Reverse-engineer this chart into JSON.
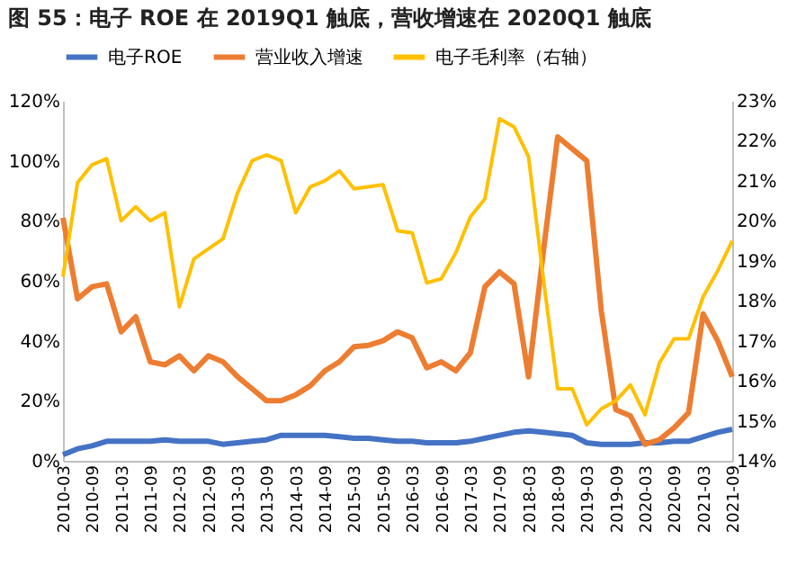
{
  "chart_data": {
    "type": "line",
    "title": "图 55：电子 ROE 在 2019Q1 触底，营收增速在 2020Q1 触底",
    "categories": [
      "2010-03",
      null,
      "2010-09",
      null,
      "2011-03",
      null,
      "2011-09",
      null,
      "2012-03",
      null,
      "2012-09",
      null,
      "2013-03",
      null,
      "2013-09",
      null,
      "2014-03",
      null,
      "2014-09",
      null,
      "2015-03",
      null,
      "2015-09",
      null,
      "2016-03",
      null,
      "2016-09",
      null,
      "2017-03",
      null,
      "2017-09",
      null,
      "2018-03",
      null,
      "2018-09",
      null,
      "2019-03",
      null,
      "2019-09",
      null,
      "2020-03",
      null,
      "2020-09",
      null,
      "2021-03",
      null,
      "2021-09"
    ],
    "series": [
      {
        "name": "电子ROE",
        "color": "#4472c4",
        "values": [
          2,
          4,
          5,
          6.5,
          6.5,
          6.5,
          6.5,
          7,
          6.5,
          6.5,
          6.5,
          5.5,
          6,
          6.5,
          7,
          8.5,
          8.5,
          8.5,
          8.5,
          8,
          7.5,
          7.5,
          7,
          6.5,
          6.5,
          6,
          6,
          6,
          6.5,
          7.5,
          8.5,
          9.5,
          10,
          9.5,
          9,
          8.5,
          6,
          5.5,
          5.5,
          5.5,
          6,
          6,
          6.5,
          6.5,
          8,
          9.5,
          10.5
        ]
      },
      {
        "name": "营业收入增速",
        "color": "#ed7d31",
        "values": [
          81,
          54,
          58,
          59,
          43,
          48,
          33,
          32,
          35,
          30,
          35,
          33,
          28,
          24,
          20,
          20,
          22,
          25,
          30,
          33,
          38,
          38.5,
          40,
          43,
          41,
          31,
          33,
          30,
          36,
          58,
          63,
          59,
          28,
          69,
          108,
          104,
          100,
          50,
          17,
          15,
          5.5,
          7,
          11,
          16,
          49,
          40,
          28
        ]
      },
      {
        "name": "电子毛利率（右轴）",
        "color": "#ffc000",
        "axis": "y2",
        "values": [
          18.6,
          20.95,
          21.4,
          21.55,
          20.0,
          20.35,
          20.0,
          20.2,
          17.85,
          19.05,
          19.3,
          19.55,
          20.7,
          21.5,
          21.65,
          21.5,
          20.2,
          20.85,
          21.0,
          21.25,
          20.8,
          20.85,
          20.9,
          19.75,
          19.7,
          18.45,
          18.55,
          19.2,
          20.1,
          20.55,
          22.55,
          22.35,
          21.6,
          18.6,
          15.8,
          15.8,
          14.9,
          15.3,
          15.5,
          15.9,
          15.15,
          16.45,
          17.05,
          17.05,
          18.1,
          18.75,
          19.5
        ]
      }
    ],
    "ylim": [
      0,
      120
    ],
    "yticks": [
      {
        "value": 0,
        "label": "0%"
      },
      {
        "value": 20,
        "label": "20%"
      },
      {
        "value": 40,
        "label": "40%"
      },
      {
        "value": 60,
        "label": "60%"
      },
      {
        "value": 80,
        "label": "80%"
      },
      {
        "value": 100,
        "label": "100%"
      },
      {
        "value": 120,
        "label": "120%"
      }
    ],
    "y2lim": [
      14,
      23
    ],
    "y2ticks": [
      {
        "value": 14,
        "label": "14%"
      },
      {
        "value": 15,
        "label": "15%"
      },
      {
        "value": 16,
        "label": "16%"
      },
      {
        "value": 17,
        "label": "17%"
      },
      {
        "value": 18,
        "label": "18%"
      },
      {
        "value": 19,
        "label": "19%"
      },
      {
        "value": 20,
        "label": "20%"
      },
      {
        "value": 21,
        "label": "21%"
      },
      {
        "value": 22,
        "label": "22%"
      },
      {
        "value": 23,
        "label": "23%"
      }
    ],
    "legend": "top",
    "grid": false,
    "marker": "none",
    "line_style": "solid"
  }
}
